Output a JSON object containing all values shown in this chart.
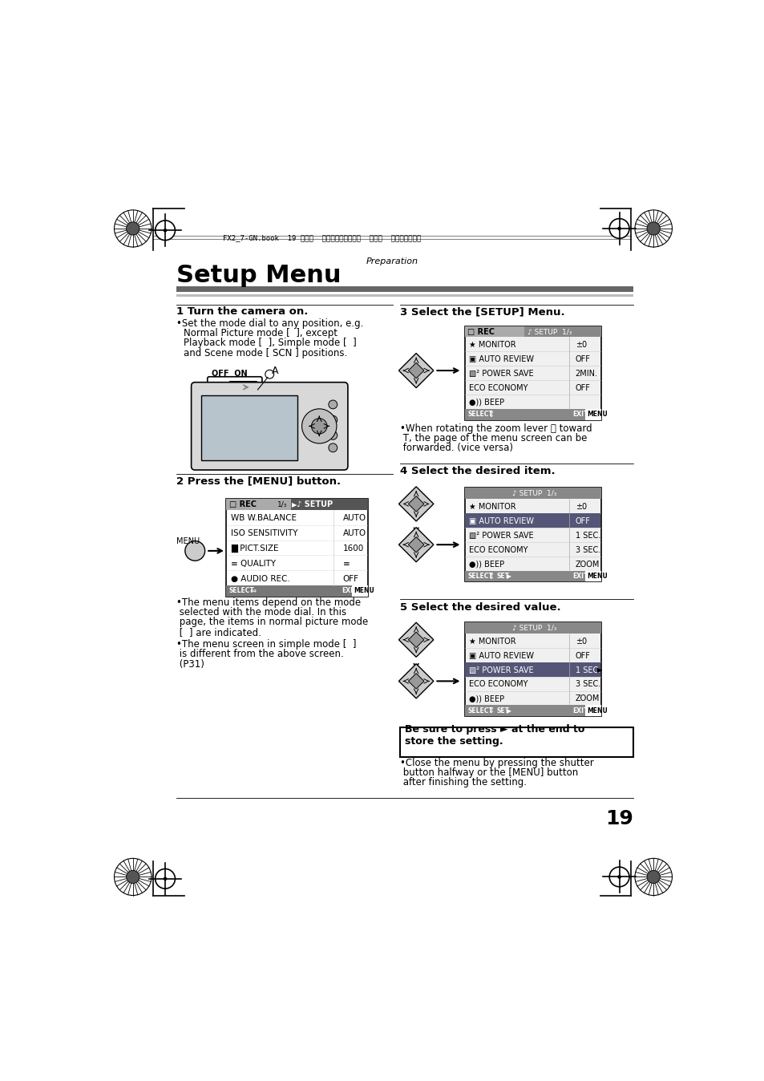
{
  "page_bg": "#ffffff",
  "page_number": "19",
  "header_text": "FX2_7-GN.book  19 ページ  ２００４年８月２日  月曜日  午後３時４０分",
  "section_label": "Preparation",
  "title": "Setup Menu",
  "step1_title": "1 Turn the camera on.",
  "step2_title": "2 Press the [MENU] button.",
  "step3_title": "3 Select the [SETUP] Menu.",
  "step4_title": "4 Select the desired item.",
  "step5_title": "5 Select the desired value.",
  "box_text1": "Be sure to press ► at the end to",
  "box_text2": "store the setting.",
  "menu3_items": [
    [
      "★ MONITOR",
      "±0"
    ],
    [
      "▣ AUTO REVIEW",
      "OFF"
    ],
    [
      "▧² POWER SAVE",
      "2MIN."
    ],
    [
      "ECO ECONOMY",
      "OFF"
    ],
    [
      "●)) BEEP",
      ""
    ]
  ],
  "menu2_items": [
    [
      "WB W.BALANCE",
      "AUTO"
    ],
    [
      "ISO SENSITIVITY",
      "AUTO"
    ],
    [
      "█ PICT.SIZE",
      "1600"
    ],
    [
      "≡ QUALITY",
      "≡"
    ],
    [
      "● AUDIO REC.",
      "OFF"
    ]
  ],
  "menu4_items": [
    [
      "★ MONITOR",
      "±0"
    ],
    [
      "▣ AUTO REVIEW",
      "OFF"
    ],
    [
      "▧² POWER SAVE",
      "1 SEC."
    ],
    [
      "ECO ECONOMY",
      "3 SEC."
    ],
    [
      "●)) BEEP",
      "ZOOM"
    ]
  ],
  "menu5_items": [
    [
      "★ MONITOR",
      "±0"
    ],
    [
      "▣ AUTO REVIEW",
      "OFF"
    ],
    [
      "▧² POWER SAVE",
      "1 SEC."
    ],
    [
      "ECO ECONOMY",
      "3 SEC."
    ],
    [
      "●)) BEEP",
      "ZOOM"
    ]
  ]
}
